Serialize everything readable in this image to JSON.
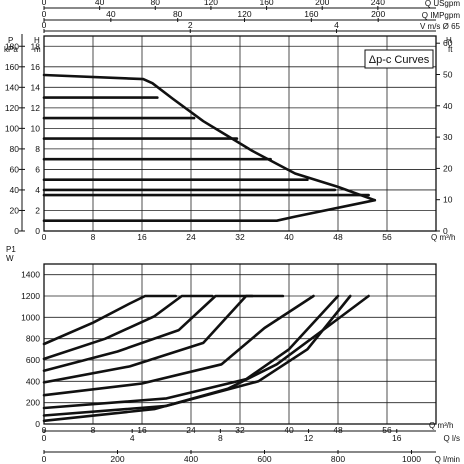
{
  "chart_data": [
    {
      "type": "line",
      "title": "",
      "legend_label": "Δp-c Curves",
      "legend_position": "top-right",
      "grid": true,
      "x": {
        "label": "Q m³/h",
        "range": [
          0,
          64
        ],
        "ticks": [
          "0",
          "8",
          "16",
          "24",
          "32",
          "40",
          "48",
          "56"
        ]
      },
      "y_left_outer": {
        "label": "P kPa",
        "range": [
          0,
          190
        ],
        "ticks": [
          "0",
          "20",
          "40",
          "60",
          "80",
          "100",
          "120",
          "140",
          "160",
          "180"
        ]
      },
      "y_left_inner": {
        "label": "H m",
        "range": [
          0,
          19
        ],
        "ticks": [
          "0",
          "2",
          "4",
          "6",
          "8",
          "10",
          "12",
          "14",
          "16",
          "18"
        ]
      },
      "y_right": {
        "label": "H ft",
        "range": [
          0,
          62.3
        ],
        "ticks": [
          "0",
          "10",
          "20",
          "30",
          "40",
          "50",
          "60"
        ]
      },
      "top_axes": [
        {
          "label": "Q USgpm",
          "range": [
            0,
            281.8
          ],
          "ticks": [
            "0",
            "40",
            "80",
            "120",
            "160",
            "200",
            "240"
          ]
        },
        {
          "label": "Q IMPgpm",
          "range": [
            0,
            234.6
          ],
          "ticks": [
            "0",
            "40",
            "80",
            "120",
            "160",
            "200"
          ]
        },
        {
          "label": "V m/s Ø 65",
          "range": [
            0,
            5.36
          ],
          "ticks": [
            "0",
            "2",
            "4",
            "6",
            "8"
          ]
        }
      ],
      "series": [
        {
          "x": [
            0,
            16.2,
            17.7,
            21,
            26,
            34,
            41,
            48,
            54
          ],
          "y": [
            15.2,
            14.8,
            14.4,
            12.9,
            10.7,
            7.8,
            5.6,
            4.3,
            3.0
          ]
        },
        {
          "x": [
            0,
            18.5
          ],
          "y": [
            13,
            13
          ]
        },
        {
          "x": [
            0,
            24.5
          ],
          "y": [
            11,
            11
          ]
        },
        {
          "x": [
            0,
            31.5
          ],
          "y": [
            9,
            9
          ]
        },
        {
          "x": [
            0,
            37
          ],
          "y": [
            7,
            7
          ]
        },
        {
          "x": [
            0,
            43
          ],
          "y": [
            5,
            5
          ]
        },
        {
          "x": [
            0,
            47.5
          ],
          "y": [
            4,
            4
          ]
        },
        {
          "x": [
            0,
            53
          ],
          "y": [
            3.5,
            3.5
          ]
        },
        {
          "x": [
            0,
            38,
            41,
            54
          ],
          "y": [
            1.0,
            1.0,
            1.4,
            3.0
          ]
        }
      ]
    },
    {
      "type": "line",
      "title": "",
      "grid": true,
      "x": {
        "label": "Q m³/h",
        "range": [
          0,
          64
        ],
        "ticks": [
          "0",
          "8",
          "16",
          "24",
          "32",
          "40",
          "48",
          "56"
        ]
      },
      "y_left": {
        "label": "P1 W",
        "range": [
          0,
          1500
        ],
        "ticks": [
          "0",
          "200",
          "400",
          "600",
          "800",
          "1000",
          "1200",
          "1400"
        ]
      },
      "bottom_axes": [
        {
          "label": "Q l/s",
          "range": [
            0,
            17.78
          ],
          "ticks": [
            "0",
            "4",
            "8",
            "12",
            "16"
          ]
        },
        {
          "label": "Q l/min",
          "range": [
            0,
            1066.7
          ],
          "ticks": [
            "0",
            "200",
            "400",
            "600",
            "800",
            "1000"
          ]
        }
      ],
      "series": [
        {
          "x": [
            0,
            8,
            14,
            16.5,
            21.5
          ],
          "y": [
            750,
            950,
            1130,
            1200,
            1200
          ]
        },
        {
          "x": [
            0,
            10,
            18,
            22.5,
            27.5
          ],
          "y": [
            610,
            800,
            1010,
            1200,
            1200
          ]
        },
        {
          "x": [
            0,
            12,
            22,
            28,
            34
          ],
          "y": [
            500,
            680,
            880,
            1200,
            1200
          ]
        },
        {
          "x": [
            0,
            14,
            26,
            33,
            39
          ],
          "y": [
            390,
            540,
            760,
            1200,
            1200
          ]
        },
        {
          "x": [
            0,
            16,
            29,
            36,
            44
          ],
          "y": [
            270,
            380,
            560,
            900,
            1200
          ]
        },
        {
          "x": [
            0,
            20,
            33,
            40,
            48
          ],
          "y": [
            150,
            240,
            420,
            700,
            1200
          ]
        },
        {
          "x": [
            0,
            20,
            35,
            43,
            50
          ],
          "y": [
            80,
            170,
            400,
            700,
            1200
          ]
        },
        {
          "x": [
            0,
            18,
            30,
            38,
            46,
            53
          ],
          "y": [
            30,
            140,
            330,
            560,
            900,
            1200
          ]
        }
      ]
    }
  ]
}
